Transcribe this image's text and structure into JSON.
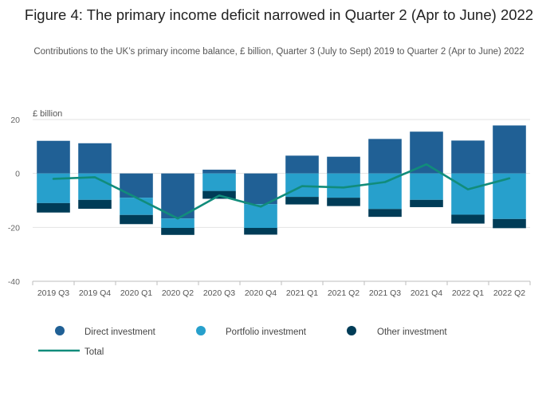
{
  "title": "Figure 4: The primary income deficit narrowed in Quarter 2 (Apr to June) 2022",
  "subtitle": "Contributions to the UK’s primary income balance, £ billion, Quarter 3 (July to Sept) 2019 to Quarter 2 (Apr to June) 2022",
  "chart_data": {
    "type": "bar",
    "stacked": true,
    "title": "Figure 4: The primary income deficit narrowed in Quarter 2 (Apr to June) 2022",
    "ylabel": "£ billion",
    "xlabel": "",
    "ylim": [
      -40,
      20
    ],
    "yticks": [
      20,
      0,
      -20,
      -40
    ],
    "categories": [
      "2019 Q3",
      "2019 Q4",
      "2020 Q1",
      "2020 Q2",
      "2020 Q3",
      "2020 Q4",
      "2021 Q1",
      "2021 Q2",
      "2021 Q3",
      "2021 Q4",
      "2022 Q1",
      "2022 Q2"
    ],
    "series": [
      {
        "name": "Direct investment",
        "type": "bar",
        "color": "#206095",
        "values": [
          12.1,
          11.2,
          -9.0,
          -16.7,
          1.4,
          -11.4,
          6.6,
          6.2,
          12.8,
          15.5,
          12.2,
          17.8
        ]
      },
      {
        "name": "Portfolio investment",
        "type": "bar",
        "color": "#27a0cc",
        "values": [
          -11.0,
          -9.8,
          -6.4,
          -3.5,
          -6.5,
          -8.8,
          -8.7,
          -9.0,
          -13.2,
          -9.8,
          -15.3,
          -16.9
        ]
      },
      {
        "name": "Other investment",
        "type": "bar",
        "color": "#003c57",
        "values": [
          -3.5,
          -3.3,
          -3.4,
          -2.6,
          -2.9,
          -2.5,
          -2.8,
          -3.1,
          -2.9,
          -2.7,
          -3.3,
          -3.4
        ]
      },
      {
        "name": "Total",
        "type": "line",
        "color": "#118c7b",
        "values": [
          -2.0,
          -1.4,
          -9.0,
          -16.7,
          -8.2,
          -12.3,
          -4.7,
          -5.2,
          -3.2,
          3.4,
          -5.9,
          -1.8
        ]
      }
    ],
    "legend": "bottom"
  }
}
